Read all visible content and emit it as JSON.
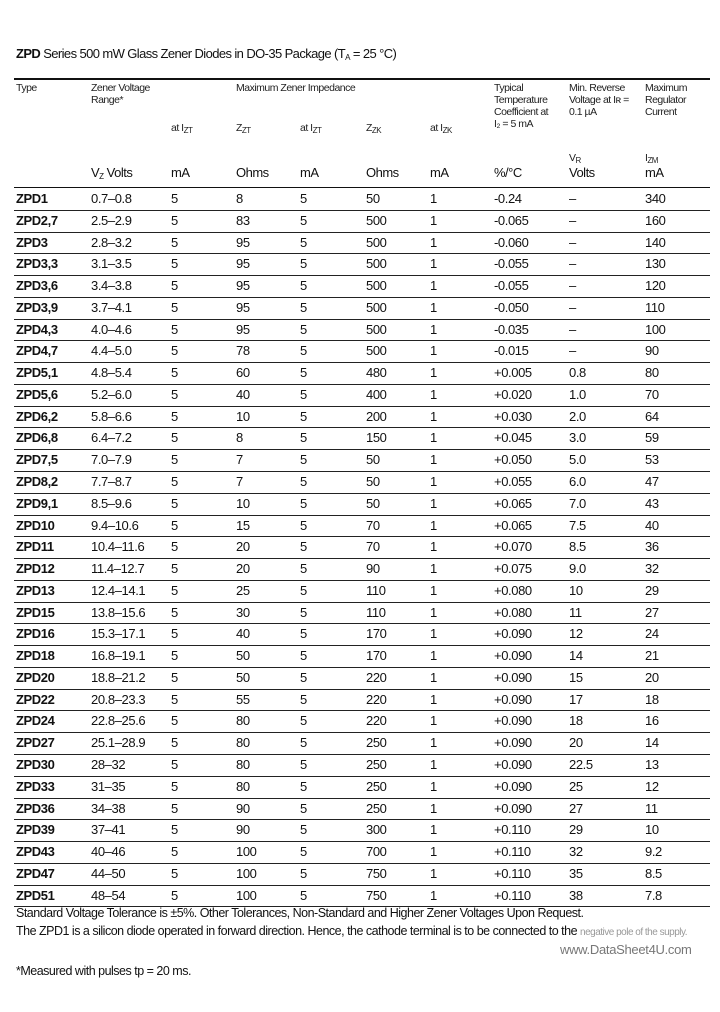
{
  "title": {
    "bold": "ZPD",
    "text": "Series 500 mW Glass Zener Diodes in DO-35 Package (T",
    "sub": "A",
    "tail": " = 25 °C)"
  },
  "header": {
    "type": "Type",
    "vz": "Zener Voltage Range*",
    "impedance": "Maximum Zener Impedance",
    "at_izt": "at I",
    "izt_sub": "ZT",
    "zzt": "Z",
    "zzt_sub": "ZT",
    "at_izt2": "at I",
    "izt2_sub": "ZT",
    "zzk": "Z",
    "zzk_sub": "ZK",
    "at_izk": "at I",
    "izk_sub": "ZK",
    "tc": "Typical Temperature Coefficient at I₂ = 5 mA",
    "vr": "Min. Reverse Voltage at Iʀ = 0.1 µA",
    "izm": "Maximum Regulator Current",
    "vr_sym": "V",
    "vr_sub": "R",
    "izm_sym": "I",
    "izm_sub": "ZM"
  },
  "units": {
    "vz": "V",
    "vz_sub": "Z",
    "vz_tail": " Volts",
    "at_izt": "mA",
    "zzt": "Ohms",
    "at_izt2": "mA",
    "zzk": "Ohms",
    "at_izk": "mA",
    "tc": "%/°C",
    "vr": "Volts",
    "izm": "mA"
  },
  "rows": [
    [
      "ZPD1",
      "0.7–0.8",
      "5",
      "8",
      "5",
      "50",
      "1",
      "-0.24",
      "–",
      "340"
    ],
    [
      "ZPD2,7",
      "2.5–2.9",
      "5",
      "83",
      "5",
      "500",
      "1",
      "-0.065",
      "–",
      "160"
    ],
    [
      "ZPD3",
      "2.8–3.2",
      "5",
      "95",
      "5",
      "500",
      "1",
      "-0.060",
      "–",
      "140"
    ],
    [
      "ZPD3,3",
      "3.1–3.5",
      "5",
      "95",
      "5",
      "500",
      "1",
      "-0.055",
      "–",
      "130"
    ],
    [
      "ZPD3,6",
      "3.4–3.8",
      "5",
      "95",
      "5",
      "500",
      "1",
      "-0.055",
      "–",
      "120"
    ],
    [
      "ZPD3,9",
      "3.7–4.1",
      "5",
      "95",
      "5",
      "500",
      "1",
      "-0.050",
      "–",
      "110"
    ],
    [
      "ZPD4,3",
      "4.0–4.6",
      "5",
      "95",
      "5",
      "500",
      "1",
      "-0.035",
      "–",
      "100"
    ],
    [
      "ZPD4,7",
      "4.4–5.0",
      "5",
      "78",
      "5",
      "500",
      "1",
      "-0.015",
      "–",
      "90"
    ],
    [
      "ZPD5,1",
      "4.8–5.4",
      "5",
      "60",
      "5",
      "480",
      "1",
      "+0.005",
      "0.8",
      "80"
    ],
    [
      "ZPD5,6",
      "5.2–6.0",
      "5",
      "40",
      "5",
      "400",
      "1",
      "+0.020",
      "1.0",
      "70"
    ],
    [
      "ZPD6,2",
      "5.8–6.6",
      "5",
      "10",
      "5",
      "200",
      "1",
      "+0.030",
      "2.0",
      "64"
    ],
    [
      "ZPD6,8",
      "6.4–7.2",
      "5",
      "8",
      "5",
      "150",
      "1",
      "+0.045",
      "3.0",
      "59"
    ],
    [
      "ZPD7,5",
      "7.0–7.9",
      "5",
      "7",
      "5",
      "50",
      "1",
      "+0.050",
      "5.0",
      "53"
    ],
    [
      "ZPD8,2",
      "7.7–8.7",
      "5",
      "7",
      "5",
      "50",
      "1",
      "+0.055",
      "6.0",
      "47"
    ],
    [
      "ZPD9,1",
      "8.5–9.6",
      "5",
      "10",
      "5",
      "50",
      "1",
      "+0.065",
      "7.0",
      "43"
    ],
    [
      "ZPD10",
      "9.4–10.6",
      "5",
      "15",
      "5",
      "70",
      "1",
      "+0.065",
      "7.5",
      "40"
    ],
    [
      "ZPD11",
      "10.4–11.6",
      "5",
      "20",
      "5",
      "70",
      "1",
      "+0.070",
      "8.5",
      "36"
    ],
    [
      "ZPD12",
      "11.4–12.7",
      "5",
      "20",
      "5",
      "90",
      "1",
      "+0.075",
      "9.0",
      "32"
    ],
    [
      "ZPD13",
      "12.4–14.1",
      "5",
      "25",
      "5",
      "110",
      "1",
      "+0.080",
      "10",
      "29"
    ],
    [
      "ZPD15",
      "13.8–15.6",
      "5",
      "30",
      "5",
      "110",
      "1",
      "+0.080",
      "11",
      "27"
    ],
    [
      "ZPD16",
      "15.3–17.1",
      "5",
      "40",
      "5",
      "170",
      "1",
      "+0.090",
      "12",
      "24"
    ],
    [
      "ZPD18",
      "16.8–19.1",
      "5",
      "50",
      "5",
      "170",
      "1",
      "+0.090",
      "14",
      "21"
    ],
    [
      "ZPD20",
      "18.8–21.2",
      "5",
      "50",
      "5",
      "220",
      "1",
      "+0.090",
      "15",
      "20"
    ],
    [
      "ZPD22",
      "20.8–23.3",
      "5",
      "55",
      "5",
      "220",
      "1",
      "+0.090",
      "17",
      "18"
    ],
    [
      "ZPD24",
      "22.8–25.6",
      "5",
      "80",
      "5",
      "220",
      "1",
      "+0.090",
      "18",
      "16"
    ],
    [
      "ZPD27",
      "25.1–28.9",
      "5",
      "80",
      "5",
      "250",
      "1",
      "+0.090",
      "20",
      "14"
    ],
    [
      "ZPD30",
      "28–32",
      "5",
      "80",
      "5",
      "250",
      "1",
      "+0.090",
      "22.5",
      "13"
    ],
    [
      "ZPD33",
      "31–35",
      "5",
      "80",
      "5",
      "250",
      "1",
      "+0.090",
      "25",
      "12"
    ],
    [
      "ZPD36",
      "34–38",
      "5",
      "90",
      "5",
      "250",
      "1",
      "+0.090",
      "27",
      "11"
    ],
    [
      "ZPD39",
      "37–41",
      "5",
      "90",
      "5",
      "300",
      "1",
      "+0.110",
      "29",
      "10"
    ],
    [
      "ZPD43",
      "40–46",
      "5",
      "100",
      "5",
      "700",
      "1",
      "+0.110",
      "32",
      "9.2"
    ],
    [
      "ZPD47",
      "44–50",
      "5",
      "100",
      "5",
      "750",
      "1",
      "+0.110",
      "35",
      "8.5"
    ],
    [
      "ZPD51",
      "48–54",
      "5",
      "100",
      "5",
      "750",
      "1",
      "+0.110",
      "38",
      "7.8"
    ]
  ],
  "notes": {
    "tolerance": "Standard Voltage Tolerance is ±5%. Other Tolerances, Non-Standard and Higher Zener Voltages Upon Request.",
    "zpd1": "The ZPD1 is a silicon diode operated in forward direction. Hence, the cathode terminal is to be connected to the",
    "zpd1_tail": "negative pole of the supply.",
    "footnote": "*Measured with pulses tp = 20 ms."
  },
  "watermark": "www.DataSheet4U.com"
}
